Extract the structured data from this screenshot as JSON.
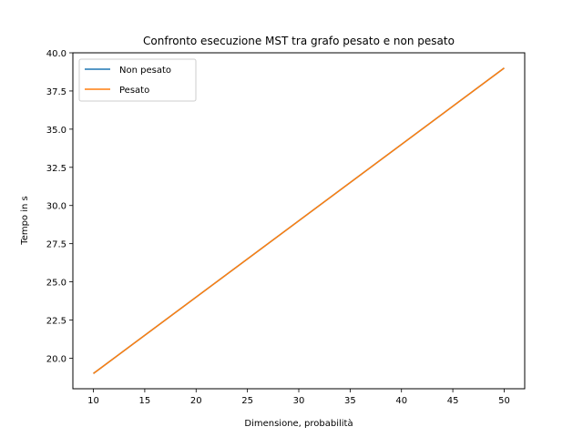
{
  "chart_data": {
    "type": "line",
    "title": "Confronto esecuzione MST tra grafo pesato e non pesato",
    "xlabel": "Dimensione, probabilità",
    "ylabel": "Tempo in s",
    "xlim": [
      8,
      52
    ],
    "ylim": [
      18.0,
      40.0
    ],
    "xticks": [
      10,
      15,
      20,
      25,
      30,
      35,
      40,
      45,
      50
    ],
    "yticks": [
      20.0,
      22.5,
      25.0,
      27.5,
      30.0,
      32.5,
      35.0,
      37.5,
      40.0
    ],
    "x": [
      10,
      50
    ],
    "series": [
      {
        "name": "Non pesato",
        "values": [
          19.0,
          39.0
        ],
        "color": "#1f77b4"
      },
      {
        "name": "Pesato",
        "values": [
          19.0,
          39.0
        ],
        "color": "#ff7f0e"
      }
    ],
    "legend": "top-left",
    "grid": false
  }
}
